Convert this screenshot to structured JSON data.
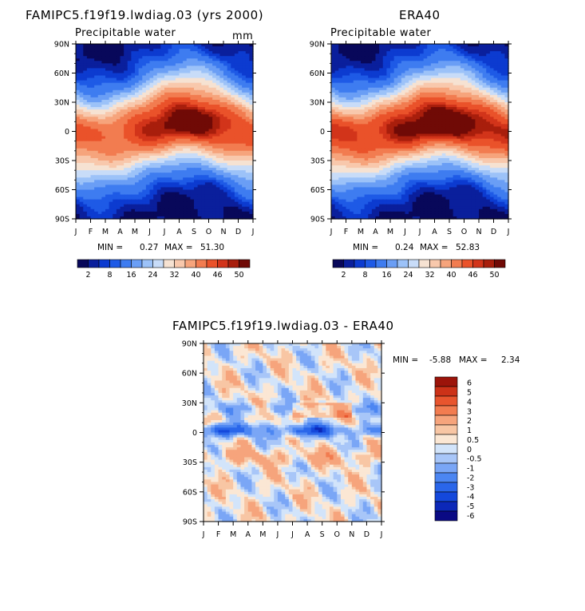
{
  "chart_data": [
    {
      "type": "heatmap",
      "title": "FAMIPC5.f19f19.lwdiag.03 (yrs 2000)",
      "subtitle": "Precipitable water",
      "units": "mm",
      "x_ticks": [
        "J",
        "F",
        "M",
        "A",
        "M",
        "J",
        "J",
        "A",
        "S",
        "O",
        "N",
        "D",
        "J"
      ],
      "y_ticks": [
        "90N",
        "60N",
        "30N",
        "0",
        "30S",
        "60S",
        "90S"
      ],
      "ylim": [
        -90,
        90
      ],
      "stats": {
        "min_label": "MIN =",
        "min": "0.27",
        "max_label": "MAX =",
        "max": "51.30"
      },
      "colorbar_labels": [
        "2",
        "8",
        "16",
        "24",
        "32",
        "40",
        "46",
        "50"
      ],
      "levels": [
        2,
        4,
        6,
        8,
        12,
        16,
        20,
        24,
        28,
        32,
        36,
        40,
        44,
        46,
        48,
        50
      ],
      "field": {
        "equator_peak_jan": 40,
        "equator_peak_aug": 51,
        "itcz_lat_jan": -5,
        "itcz_lat_aug": 10,
        "pole_value": 1
      }
    },
    {
      "type": "heatmap",
      "title": "ERA40",
      "subtitle": "Precipitable water",
      "x_ticks": [
        "J",
        "F",
        "M",
        "A",
        "M",
        "J",
        "J",
        "A",
        "S",
        "O",
        "N",
        "D",
        "J"
      ],
      "y_ticks": [
        "90N",
        "60N",
        "30N",
        "0",
        "30S",
        "60S",
        "90S"
      ],
      "ylim": [
        -90,
        90
      ],
      "stats": {
        "min_label": "MIN =",
        "min": "0.24",
        "max_label": "MAX =",
        "max": "52.83"
      },
      "colorbar_labels": [
        "2",
        "8",
        "16",
        "24",
        "32",
        "40",
        "46",
        "50"
      ],
      "levels": [
        2,
        4,
        6,
        8,
        12,
        16,
        20,
        24,
        28,
        32,
        36,
        40,
        44,
        46,
        48,
        50
      ],
      "field": {
        "equator_peak_jan": 44,
        "equator_peak_aug": 52,
        "itcz_lat_jan": -4,
        "itcz_lat_aug": 9,
        "pole_value": 1
      }
    },
    {
      "type": "heatmap",
      "title": "FAMIPC5.f19f19.lwdiag.03 - ERA40",
      "x_ticks": [
        "J",
        "F",
        "M",
        "A",
        "M",
        "J",
        "J",
        "A",
        "S",
        "O",
        "N",
        "D",
        "J"
      ],
      "y_ticks": [
        "90N",
        "60N",
        "30N",
        "0",
        "30S",
        "60S",
        "90S"
      ],
      "ylim": [
        -90,
        90
      ],
      "stats": {
        "min_label": "MIN =",
        "min": "-5.88",
        "max_label": "MAX =",
        "max": "2.34"
      },
      "colorbar_labels": [
        "6",
        "5",
        "4",
        "3",
        "2",
        "1",
        "0.5",
        "0",
        "-0.5",
        "-1",
        "-2",
        "-3",
        "-4",
        "-5",
        "-6"
      ],
      "levels": [
        -6,
        -5,
        -4,
        -3,
        -2,
        -1,
        -0.5,
        0,
        0.5,
        1,
        2,
        3,
        4,
        5,
        6
      ]
    }
  ],
  "colors": {
    "palette16": [
      "#08085a",
      "#0a1f9c",
      "#0c3bd0",
      "#1e5ae6",
      "#3e7cf0",
      "#6a9ef5",
      "#9cc2f8",
      "#c8dcf8",
      "#f6e2d2",
      "#f8c8ac",
      "#f6a47c",
      "#f27c50",
      "#ea522a",
      "#d2341a",
      "#a81e0c",
      "#700a06"
    ],
    "diff_palette": [
      "#0a0a84",
      "#0c28b8",
      "#1448dc",
      "#2a66ea",
      "#4c86f2",
      "#7aa6f6",
      "#a8c6f8",
      "#d2e4fa",
      "#fbe7d4",
      "#f8c6a4",
      "#f6a47c",
      "#f27c50",
      "#e8552e",
      "#cc3218",
      "#9c140a"
    ],
    "diff_colorbar": [
      "#9c140a",
      "#cc3218",
      "#e8552e",
      "#f27c50",
      "#f6a47c",
      "#f8c6a4",
      "#fbe7d4",
      "#d2e4fa",
      "#a8c6f8",
      "#7aa6f6",
      "#4c86f2",
      "#2a66ea",
      "#1448dc",
      "#0c28b8",
      "#0a0a84"
    ]
  }
}
